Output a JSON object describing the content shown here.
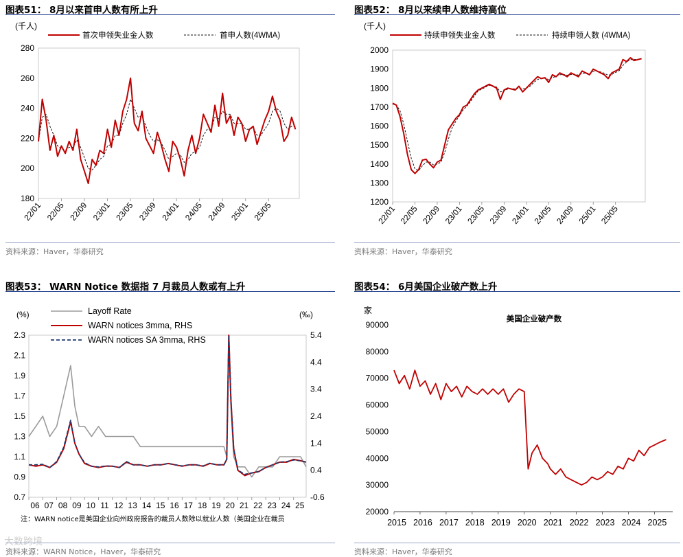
{
  "colors": {
    "red": "#c00000",
    "gray": "#9a9a9a",
    "navy": "#1f3a6e",
    "title_line": "#1f3f8f"
  },
  "watermark": "大数跨境",
  "panels": [
    {
      "title": "图表51： 8月以来首申人数有所上升",
      "source": "资料来源：Haver，华泰研究"
    },
    {
      "title": "图表52： 8月以来续申人数维持高位",
      "source": "资料来源：Haver，华泰研究"
    },
    {
      "title": "图表53： WARN Notice 数据指 7 月裁员人数或有上升",
      "source": "资料来源：WARN Notice，Haver，华泰研究",
      "note": "注：WARN notice是美国企业向州政府报告的裁员人数除以就业人数（美国企业在裁员"
    },
    {
      "title": "图表54： 6月美国企业破产数上升",
      "source": "资料来源：Haver，华泰研究"
    }
  ],
  "chart_data": [
    {
      "type": "line",
      "unit_label": "(千人)",
      "series": [
        {
          "name": "首次申领失业金人数",
          "style": "solid-red"
        },
        {
          "name": "首申人数(4WMA)",
          "style": "dashed-black"
        }
      ],
      "ylim": [
        180,
        280
      ],
      "yticks": [
        180,
        200,
        220,
        240,
        260,
        280
      ],
      "xlim": [
        0,
        34
      ],
      "xtick_labels": [
        "22/01",
        "22/05",
        "22/09",
        "23/01",
        "23/05",
        "23/09",
        "24/01",
        "24/05",
        "24/09",
        "25/01",
        "25/05"
      ],
      "xtick_pos": [
        0,
        3,
        6,
        9,
        12,
        15,
        18,
        21,
        24,
        27,
        30
      ],
      "x": [
        0,
        0.5,
        1,
        1.5,
        2,
        2.5,
        3,
        3.5,
        4,
        4.5,
        5,
        5.5,
        6,
        6.5,
        7,
        7.5,
        8,
        8.5,
        9,
        9.5,
        10,
        10.5,
        11,
        11.5,
        12,
        12.5,
        13,
        13.5,
        14,
        14.5,
        15,
        15.5,
        16,
        16.5,
        17,
        17.5,
        18,
        18.5,
        19,
        19.5,
        20,
        20.5,
        21,
        21.5,
        22,
        22.5,
        23,
        23.5,
        24,
        24.5,
        25,
        25.5,
        26,
        26.5,
        27,
        27.5,
        28,
        28.5,
        29,
        29.5,
        30,
        30.5,
        31,
        31.5,
        32,
        32.5,
        33,
        33.5
      ],
      "values": [
        218,
        246,
        232,
        212,
        222,
        208,
        215,
        210,
        218,
        212,
        226,
        206,
        198,
        190,
        206,
        202,
        212,
        210,
        226,
        214,
        232,
        222,
        238,
        246,
        260,
        230,
        225,
        238,
        220,
        215,
        210,
        224,
        216,
        206,
        198,
        218,
        214,
        206,
        195,
        212,
        222,
        210,
        220,
        236,
        230,
        224,
        242,
        228,
        250,
        230,
        235,
        222,
        234,
        230,
        218,
        226,
        228,
        216,
        224,
        232,
        238,
        248,
        238,
        232,
        218,
        222,
        234,
        226
      ],
      "values_4wma": [
        218,
        234,
        236,
        228,
        222,
        215,
        213,
        212,
        214,
        214,
        219,
        214,
        207,
        200,
        199,
        202,
        206,
        208,
        215,
        216,
        222,
        222,
        230,
        236,
        246,
        240,
        234,
        235,
        228,
        222,
        218,
        219,
        217,
        212,
        206,
        208,
        210,
        209,
        204,
        206,
        210,
        211,
        214,
        222,
        226,
        226,
        234,
        233,
        238,
        236,
        236,
        230,
        230,
        230,
        226,
        226,
        227,
        222,
        222,
        226,
        230,
        238,
        240,
        238,
        230,
        226,
        228,
        228
      ]
    },
    {
      "type": "line",
      "unit_label": "(千人)",
      "series": [
        {
          "name": "持续申领失业金人数",
          "style": "solid-red"
        },
        {
          "name": "持续申领人数 (4WMA)",
          "style": "dashed-black"
        }
      ],
      "ylim": [
        1200,
        2000
      ],
      "yticks": [
        1200,
        1300,
        1400,
        1500,
        1600,
        1700,
        1800,
        1900,
        2000
      ],
      "xlim": [
        0,
        34
      ],
      "xtick_labels": [
        "22/01",
        "22/05",
        "22/09",
        "23/01",
        "23/05",
        "23/09",
        "24/01",
        "24/05",
        "24/09",
        "25/01",
        "25/05"
      ],
      "xtick_pos": [
        0,
        3,
        6,
        9,
        12,
        15,
        18,
        21,
        24,
        27,
        30
      ],
      "x": [
        0,
        0.5,
        1,
        1.5,
        2,
        2.5,
        3,
        3.5,
        4,
        4.5,
        5,
        5.5,
        6,
        6.5,
        7,
        7.5,
        8,
        8.5,
        9,
        9.5,
        10,
        10.5,
        11,
        11.5,
        12,
        12.5,
        13,
        13.5,
        14,
        14.5,
        15,
        15.5,
        16,
        16.5,
        17,
        17.5,
        18,
        18.5,
        19,
        19.5,
        20,
        20.5,
        21,
        21.5,
        22,
        22.5,
        23,
        23.5,
        24,
        24.5,
        25,
        25.5,
        26,
        26.5,
        27,
        27.5,
        28,
        28.5,
        29,
        29.5,
        30,
        30.5,
        31,
        31.5,
        32,
        32.5,
        33,
        33.5
      ],
      "values": [
        1720,
        1710,
        1650,
        1560,
        1450,
        1370,
        1350,
        1370,
        1420,
        1425,
        1400,
        1380,
        1410,
        1420,
        1500,
        1580,
        1610,
        1640,
        1660,
        1700,
        1710,
        1740,
        1770,
        1790,
        1800,
        1810,
        1820,
        1810,
        1800,
        1740,
        1790,
        1800,
        1795,
        1790,
        1810,
        1780,
        1800,
        1820,
        1840,
        1860,
        1850,
        1855,
        1830,
        1870,
        1860,
        1880,
        1870,
        1860,
        1880,
        1870,
        1860,
        1890,
        1880,
        1870,
        1900,
        1890,
        1880,
        1870,
        1850,
        1880,
        1890,
        1900,
        1950,
        1940,
        1960,
        1945,
        1950,
        1955
      ],
      "values_4wma": [
        1715,
        1712,
        1680,
        1610,
        1520,
        1430,
        1375,
        1365,
        1390,
        1410,
        1410,
        1395,
        1400,
        1410,
        1460,
        1530,
        1590,
        1625,
        1655,
        1685,
        1705,
        1730,
        1760,
        1785,
        1795,
        1805,
        1815,
        1812,
        1805,
        1780,
        1785,
        1795,
        1797,
        1795,
        1800,
        1795,
        1800,
        1810,
        1830,
        1845,
        1850,
        1852,
        1845,
        1855,
        1862,
        1870,
        1872,
        1868,
        1872,
        1873,
        1868,
        1878,
        1880,
        1877,
        1888,
        1890,
        1885,
        1878,
        1868,
        1872,
        1882,
        1892,
        1920,
        1938,
        1950,
        1950,
        1952,
        1953
      ]
    },
    {
      "type": "line",
      "left_unit": "(%)",
      "right_unit": "(‰)",
      "series": [
        {
          "name": "Layoff Rate",
          "axis": "left",
          "style": "solid-gray"
        },
        {
          "name": "WARN notices 3mma, RHS",
          "axis": "right",
          "style": "solid-red"
        },
        {
          "name": "WARN notices SA 3mma, RHS",
          "axis": "right",
          "style": "dashed-navy"
        }
      ],
      "ylim_left": [
        0.7,
        2.3
      ],
      "yticks_left": [
        0.7,
        0.9,
        1.1,
        1.3,
        1.5,
        1.7,
        1.9,
        2.1,
        2.3
      ],
      "ylim_right": [
        -0.6,
        5.4
      ],
      "yticks_right": [
        -0.6,
        0.4,
        1.4,
        2.4,
        3.4,
        4.4,
        5.4
      ],
      "xlim": [
        2006,
        2025.9
      ],
      "xtick_labels": [
        "06",
        "07",
        "08",
        "09",
        "10",
        "11",
        "12",
        "13",
        "14",
        "15",
        "16",
        "17",
        "18",
        "19",
        "20",
        "21",
        "22",
        "23",
        "24",
        "25"
      ],
      "xtick_pos": [
        2006,
        2007,
        2008,
        2009,
        2010,
        2011,
        2012,
        2013,
        2014,
        2015,
        2016,
        2017,
        2018,
        2019,
        2020,
        2021,
        2022,
        2023,
        2024,
        2025
      ],
      "x": [
        2006,
        2006.5,
        2007,
        2007.5,
        2008,
        2008.5,
        2009,
        2009.3,
        2009.6,
        2010,
        2010.5,
        2011,
        2011.5,
        2012,
        2012.5,
        2013,
        2013.5,
        2014,
        2014.5,
        2015,
        2015.5,
        2016,
        2016.5,
        2017,
        2017.5,
        2018,
        2018.5,
        2019,
        2019.5,
        2020,
        2020.2,
        2020.35,
        2020.5,
        2020.7,
        2021,
        2021.5,
        2022,
        2022.5,
        2023,
        2023.5,
        2024,
        2024.5,
        2025,
        2025.5,
        2025.9
      ],
      "layoff_rate": [
        1.3,
        1.4,
        1.5,
        1.3,
        1.4,
        1.7,
        2.0,
        1.6,
        1.4,
        1.4,
        1.3,
        1.4,
        1.3,
        1.3,
        1.3,
        1.3,
        1.3,
        1.2,
        1.2,
        1.2,
        1.2,
        1.2,
        1.2,
        1.2,
        1.2,
        1.2,
        1.2,
        1.2,
        1.2,
        1.2,
        1.1,
        2.3,
        1.6,
        1.1,
        1.0,
        1.0,
        0.9,
        1.0,
        1.0,
        1.0,
        1.1,
        1.1,
        1.1,
        1.1,
        1.0
      ],
      "warn_3mma": [
        0.6,
        0.55,
        0.6,
        0.5,
        0.7,
        1.2,
        2.2,
        1.4,
        1.0,
        0.65,
        0.55,
        0.5,
        0.55,
        0.55,
        0.5,
        0.7,
        0.6,
        0.6,
        0.55,
        0.6,
        0.6,
        0.65,
        0.6,
        0.55,
        0.6,
        0.6,
        0.55,
        0.65,
        0.6,
        0.6,
        0.8,
        5.6,
        3.0,
        1.2,
        0.4,
        0.2,
        0.3,
        0.35,
        0.5,
        0.6,
        0.7,
        0.7,
        0.8,
        0.75,
        0.7
      ],
      "warn_sa_3mma": [
        0.6,
        0.6,
        0.62,
        0.5,
        0.72,
        1.25,
        2.25,
        1.4,
        1.0,
        0.68,
        0.55,
        0.52,
        0.56,
        0.55,
        0.5,
        0.72,
        0.6,
        0.6,
        0.55,
        0.6,
        0.6,
        0.65,
        0.6,
        0.56,
        0.6,
        0.6,
        0.56,
        0.66,
        0.6,
        0.6,
        0.8,
        5.5,
        3.0,
        1.2,
        0.4,
        0.25,
        0.3,
        0.35,
        0.5,
        0.6,
        0.7,
        0.72,
        0.78,
        0.75,
        0.7
      ]
    },
    {
      "type": "line",
      "title": "美国企业破产数",
      "unit_label": "家",
      "series": [
        {
          "name": "美国企业破产数",
          "style": "solid-red"
        }
      ],
      "ylim": [
        20000,
        90000
      ],
      "yticks": [
        20000,
        30000,
        40000,
        50000,
        60000,
        70000,
        80000,
        90000
      ],
      "xlim": [
        2015,
        2025.7
      ],
      "xtick_labels": [
        "2015",
        "2016",
        "2017",
        "2018",
        "2019",
        "2020",
        "2021",
        "2022",
        "2023",
        "2024",
        "2025"
      ],
      "xtick_pos": [
        2015,
        2016,
        2017,
        2018,
        2019,
        2020,
        2021,
        2022,
        2023,
        2024,
        2025
      ],
      "x": [
        2015,
        2015.2,
        2015.4,
        2015.6,
        2015.8,
        2016,
        2016.2,
        2016.4,
        2016.6,
        2016.8,
        2017,
        2017.2,
        2017.4,
        2017.6,
        2017.8,
        2018,
        2018.2,
        2018.4,
        2018.6,
        2018.8,
        2019,
        2019.2,
        2019.4,
        2019.6,
        2019.8,
        2020,
        2020.15,
        2020.3,
        2020.5,
        2020.7,
        2020.9,
        2021,
        2021.2,
        2021.4,
        2021.6,
        2021.8,
        2022,
        2022.2,
        2022.4,
        2022.6,
        2022.8,
        2023,
        2023.2,
        2023.4,
        2023.6,
        2023.8,
        2024,
        2024.2,
        2024.4,
        2024.6,
        2024.8,
        2025,
        2025.2,
        2025.45
      ],
      "values": [
        73000,
        68000,
        71000,
        66000,
        73000,
        67000,
        69000,
        64000,
        68000,
        62000,
        68000,
        65000,
        67000,
        63000,
        67000,
        65000,
        64000,
        66000,
        64000,
        66000,
        64000,
        66000,
        61000,
        64000,
        66000,
        65000,
        36000,
        42000,
        45000,
        40000,
        38000,
        36000,
        34000,
        36000,
        33000,
        32000,
        31000,
        30000,
        31000,
        33000,
        32000,
        33000,
        35000,
        34000,
        37000,
        36000,
        40000,
        39000,
        43000,
        41000,
        44000,
        45000,
        46000,
        47000
      ]
    }
  ]
}
